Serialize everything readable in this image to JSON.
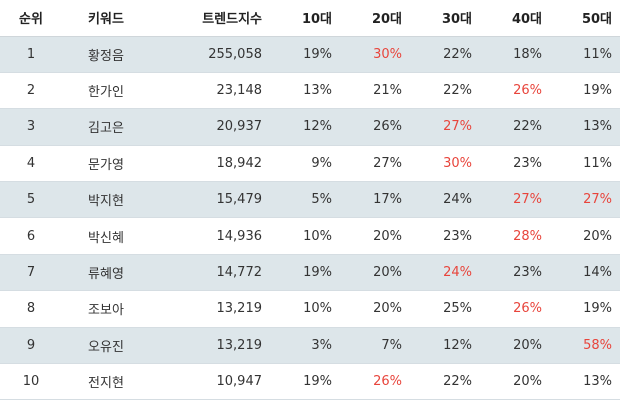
{
  "colors": {
    "row_shade": "#dde6ea",
    "highlight": "#e8453c",
    "text": "#333333"
  },
  "headers": [
    "순위",
    "키워드",
    "트렌드지수",
    "10대",
    "20대",
    "30대",
    "40대",
    "50대"
  ],
  "rows": [
    {
      "rank": "1",
      "keyword": "황정음",
      "index": "255,058",
      "ages": [
        "19%",
        "30%",
        "22%",
        "18%",
        "11%"
      ],
      "highlight": [
        false,
        true,
        false,
        false,
        false
      ]
    },
    {
      "rank": "2",
      "keyword": "한가인",
      "index": "23,148",
      "ages": [
        "13%",
        "21%",
        "22%",
        "26%",
        "19%"
      ],
      "highlight": [
        false,
        false,
        false,
        true,
        false
      ]
    },
    {
      "rank": "3",
      "keyword": "김고은",
      "index": "20,937",
      "ages": [
        "12%",
        "26%",
        "27%",
        "22%",
        "13%"
      ],
      "highlight": [
        false,
        false,
        true,
        false,
        false
      ]
    },
    {
      "rank": "4",
      "keyword": "문가영",
      "index": "18,942",
      "ages": [
        "9%",
        "27%",
        "30%",
        "23%",
        "11%"
      ],
      "highlight": [
        false,
        false,
        true,
        false,
        false
      ]
    },
    {
      "rank": "5",
      "keyword": "박지현",
      "index": "15,479",
      "ages": [
        "5%",
        "17%",
        "24%",
        "27%",
        "27%"
      ],
      "highlight": [
        false,
        false,
        false,
        true,
        true
      ]
    },
    {
      "rank": "6",
      "keyword": "박신혜",
      "index": "14,936",
      "ages": [
        "10%",
        "20%",
        "23%",
        "28%",
        "20%"
      ],
      "highlight": [
        false,
        false,
        false,
        true,
        false
      ]
    },
    {
      "rank": "7",
      "keyword": "류혜영",
      "index": "14,772",
      "ages": [
        "19%",
        "20%",
        "24%",
        "23%",
        "14%"
      ],
      "highlight": [
        false,
        false,
        true,
        false,
        false
      ]
    },
    {
      "rank": "8",
      "keyword": "조보아",
      "index": "13,219",
      "ages": [
        "10%",
        "20%",
        "25%",
        "26%",
        "19%"
      ],
      "highlight": [
        false,
        false,
        false,
        true,
        false
      ]
    },
    {
      "rank": "9",
      "keyword": "오유진",
      "index": "13,219",
      "ages": [
        "3%",
        "7%",
        "12%",
        "20%",
        "58%"
      ],
      "highlight": [
        false,
        false,
        false,
        false,
        true
      ]
    },
    {
      "rank": "10",
      "keyword": "전지현",
      "index": "10,947",
      "ages": [
        "19%",
        "26%",
        "22%",
        "20%",
        "13%"
      ],
      "highlight": [
        false,
        true,
        false,
        false,
        false
      ]
    }
  ]
}
